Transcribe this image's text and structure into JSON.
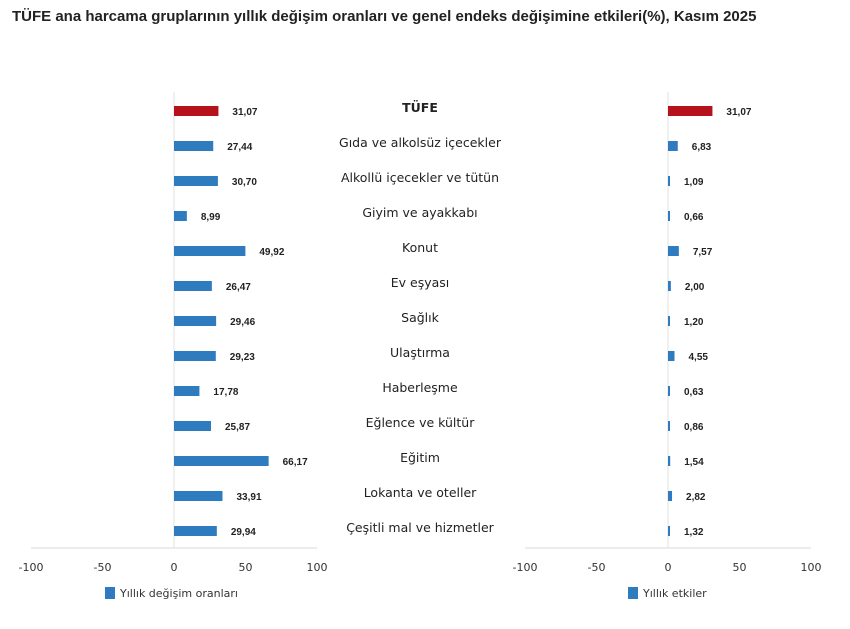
{
  "title": "TÜFE ana harcama gruplarının yıllık değişim oranları ve genel endeks değişimine etkileri(%), Kasım 2025",
  "colors": {
    "highlight": "#b5121b",
    "series": "#2e7bbf"
  },
  "chart_data": [
    {
      "type": "bar",
      "orientation": "horizontal",
      "categories": [
        "TÜFE",
        "Gıda ve alkolsüz içecekler",
        "Alkollü içecekler ve tütün",
        "Giyim ve ayakkabı",
        "Konut",
        "Ev eşyası",
        "Sağlık",
        "Ulaştırma",
        "Haberleşme",
        "Eğlence ve kültür",
        "Eğitim",
        "Lokanta ve oteller",
        "Çeşitli mal ve hizmetler"
      ],
      "series": [
        {
          "name": "Yıllık değişim oranları",
          "values": [
            31.07,
            27.44,
            30.7,
            8.99,
            49.92,
            26.47,
            29.46,
            29.23,
            17.78,
            25.87,
            66.17,
            33.91,
            29.94
          ]
        }
      ],
      "labels": [
        "31,07",
        "27,44",
        "30,70",
        "8,99",
        "49,92",
        "26,47",
        "29,46",
        "29,23",
        "17,78",
        "25,87",
        "66,17",
        "33,91",
        "29,94"
      ],
      "xlim": [
        -100,
        100
      ],
      "xticks": [
        "-100",
        "-50",
        "0",
        "50",
        "100"
      ],
      "legend": "bottom-left"
    },
    {
      "type": "bar",
      "orientation": "horizontal",
      "categories": [
        "TÜFE",
        "Gıda ve alkolsüz içecekler",
        "Alkollü içecekler ve tütün",
        "Giyim ve ayakkabı",
        "Konut",
        "Ev eşyası",
        "Sağlık",
        "Ulaştırma",
        "Haberleşme",
        "Eğlence ve kültür",
        "Eğitim",
        "Lokanta ve oteller",
        "Çeşitli mal ve hizmetler"
      ],
      "series": [
        {
          "name": "Yıllık etkiler",
          "values": [
            31.07,
            6.83,
            1.09,
            0.66,
            7.57,
            2.0,
            1.2,
            4.55,
            0.63,
            0.86,
            1.54,
            2.82,
            1.32
          ]
        }
      ],
      "labels": [
        "31,07",
        "6,83",
        "1,09",
        "0,66",
        "7,57",
        "2,00",
        "1,20",
        "4,55",
        "0,63",
        "0,86",
        "1,54",
        "2,82",
        "1,32"
      ],
      "xlim": [
        -100,
        100
      ],
      "xticks": [
        "-100",
        "-50",
        "0",
        "50",
        "100"
      ],
      "legend": "bottom"
    }
  ]
}
